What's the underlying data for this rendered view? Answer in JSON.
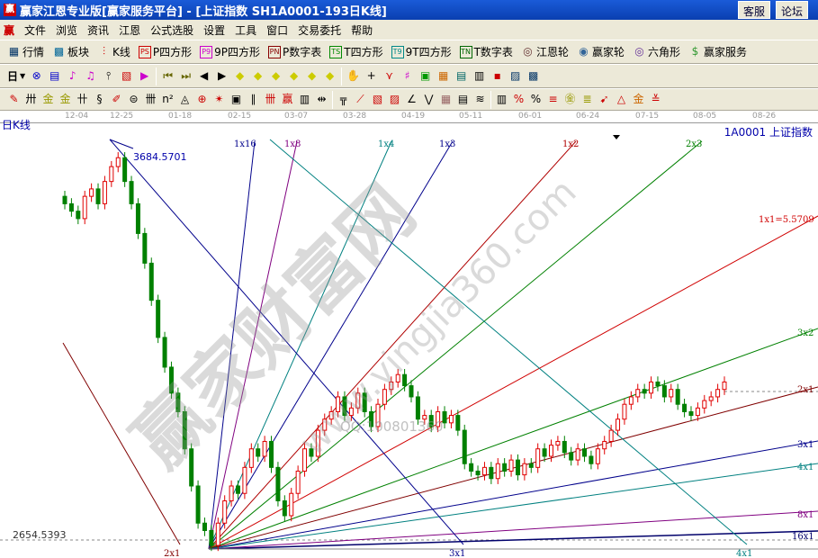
{
  "window": {
    "title": "赢家江恩专业版[赢家服务平台] - [上证指数  SH1A0001-193日K线]",
    "buttons": [
      "客服",
      "论坛"
    ]
  },
  "menu": {
    "logo": "赢",
    "items": [
      "文件",
      "浏览",
      "资讯",
      "江恩",
      "公式选股",
      "设置",
      "工具",
      "窗口",
      "交易委托",
      "帮助"
    ]
  },
  "toolbar1": [
    {
      "icon": "grid-icon",
      "label": "行情"
    },
    {
      "icon": "blocks-icon",
      "label": "板块"
    },
    {
      "icon": "kline-icon",
      "label": "K线"
    },
    {
      "icon": "PS",
      "label": "P四方形"
    },
    {
      "icon": "P9",
      "label": "9P四方形"
    },
    {
      "icon": "PN",
      "label": "P数字表"
    },
    {
      "icon": "TS",
      "label": "T四方形"
    },
    {
      "icon": "T9",
      "label": "9T四方形"
    },
    {
      "icon": "TN",
      "label": "T数字表"
    },
    {
      "icon": "wheel-icon",
      "label": "江恩轮"
    },
    {
      "icon": "big-icon",
      "label": "赢家轮"
    },
    {
      "icon": "hexagon-icon",
      "label": "六角形"
    },
    {
      "icon": "dollar-icon",
      "label": "赢家服务"
    }
  ],
  "toolbar2": {
    "period": "日"
  },
  "date_axis": [
    "12-04",
    "12-25",
    "01-18",
    "02-15",
    "03-07",
    "03-28",
    "04-19",
    "05-11",
    "06-01",
    "06-24",
    "07-15",
    "08-05",
    "08-26"
  ],
  "chart": {
    "label": "日K线",
    "stock": "1A0001  上证指数",
    "high_label": "3684.5701",
    "low_label": "2654.5393",
    "watermark": "赢家财富网",
    "watermark_url": "www.yingjia360.com",
    "watermark_qq": "QQ:100801360",
    "colors": {
      "up": "#e00000",
      "down": "#008000"
    },
    "fan_labels": [
      "1x16",
      "1x8",
      "1x4",
      "1x3",
      "1x2",
      "2x3",
      "1x1=5.5709",
      "3x2",
      "2x1",
      "3x1",
      "4x1",
      "8x1",
      "16x1"
    ],
    "bottom_labels": [
      "2x1",
      "3x1",
      "4x1"
    ]
  },
  "chart_data": {
    "type": "candlestick",
    "ylim": [
      2630,
      3720
    ],
    "high": 3684.5701,
    "low": 2654.5393,
    "closes": [
      3560,
      3540,
      3520,
      3580,
      3600,
      3560,
      3620,
      3660,
      3684,
      3620,
      3560,
      3480,
      3400,
      3300,
      3200,
      3120,
      3050,
      3000,
      2900,
      2800,
      2700,
      2680,
      2640,
      2700,
      2760,
      2800,
      2780,
      2850,
      2900,
      2880,
      2920,
      2850,
      2760,
      2720,
      2780,
      2840,
      2900,
      2880,
      2950,
      2980,
      3000,
      3040,
      2990,
      3010,
      3050,
      3000,
      2960,
      3020,
      3060,
      3080,
      3100,
      3070,
      3040,
      2980,
      2990,
      2960,
      3000,
      2970,
      2990,
      2950,
      2860,
      2840,
      2830,
      2850,
      2820,
      2860,
      2840,
      2870,
      2830,
      2860,
      2850,
      2900,
      2880,
      2910,
      2920,
      2890,
      2870,
      2900,
      2880,
      2860,
      2900,
      2920,
      2950,
      2980,
      3020,
      3040,
      3060,
      3050,
      3080,
      3070,
      3040,
      3060,
      3020,
      3000,
      2990,
      3010,
      3030,
      3040,
      3060,
      3080
    ]
  }
}
